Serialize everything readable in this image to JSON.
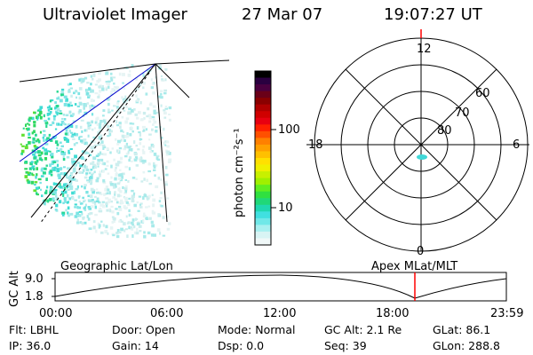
{
  "header": {
    "instrument": "Ultraviolet Imager",
    "date": "27 Mar 07",
    "time": "19:07:27 UT"
  },
  "colorbar": {
    "unit_label": "photon cm⁻²s⁻¹",
    "ticks": [
      "100",
      "10"
    ],
    "colors": [
      "#000000",
      "#2a0040",
      "#4a0040",
      "#6a0018",
      "#8a0000",
      "#b00000",
      "#d00000",
      "#e80010",
      "#ff2000",
      "#ff5000",
      "#ff8000",
      "#ffa000",
      "#ffc000",
      "#ffe000",
      "#f0f000",
      "#c8f000",
      "#a0f000",
      "#60ee20",
      "#30e040",
      "#20d878",
      "#20d8b0",
      "#40e0e0",
      "#70e8e8",
      "#a8f0f0",
      "#d8f4f4",
      "#f0f8f8"
    ]
  },
  "polar": {
    "mlt_labels": {
      "top": "12",
      "left": "18",
      "right": "6",
      "bottom": "0"
    },
    "lat_labels": [
      "60",
      "70",
      "80"
    ]
  },
  "alt_panel": {
    "left_title": "Geographic Lat/Lon",
    "right_title": "Apex MLat/MLT",
    "ylabel": "GC Alt",
    "y_ticks": [
      "9.0",
      "1.8"
    ],
    "x_ticks": [
      "00:00",
      "06:00",
      "12:00",
      "18:00",
      "23:59"
    ]
  },
  "status": {
    "flt": "Flt: LBHL",
    "door": "Door: Open",
    "mode": "Mode: Normal",
    "gc_alt": "GC Alt: 2.1 Re",
    "glat": "GLat:  86.1",
    "ip": "IP: 36.0",
    "gain": "Gain: 14",
    "dsp": "Dsp:    0.0",
    "seq": "Seq: 39",
    "glon": "GLon: 288.8"
  }
}
